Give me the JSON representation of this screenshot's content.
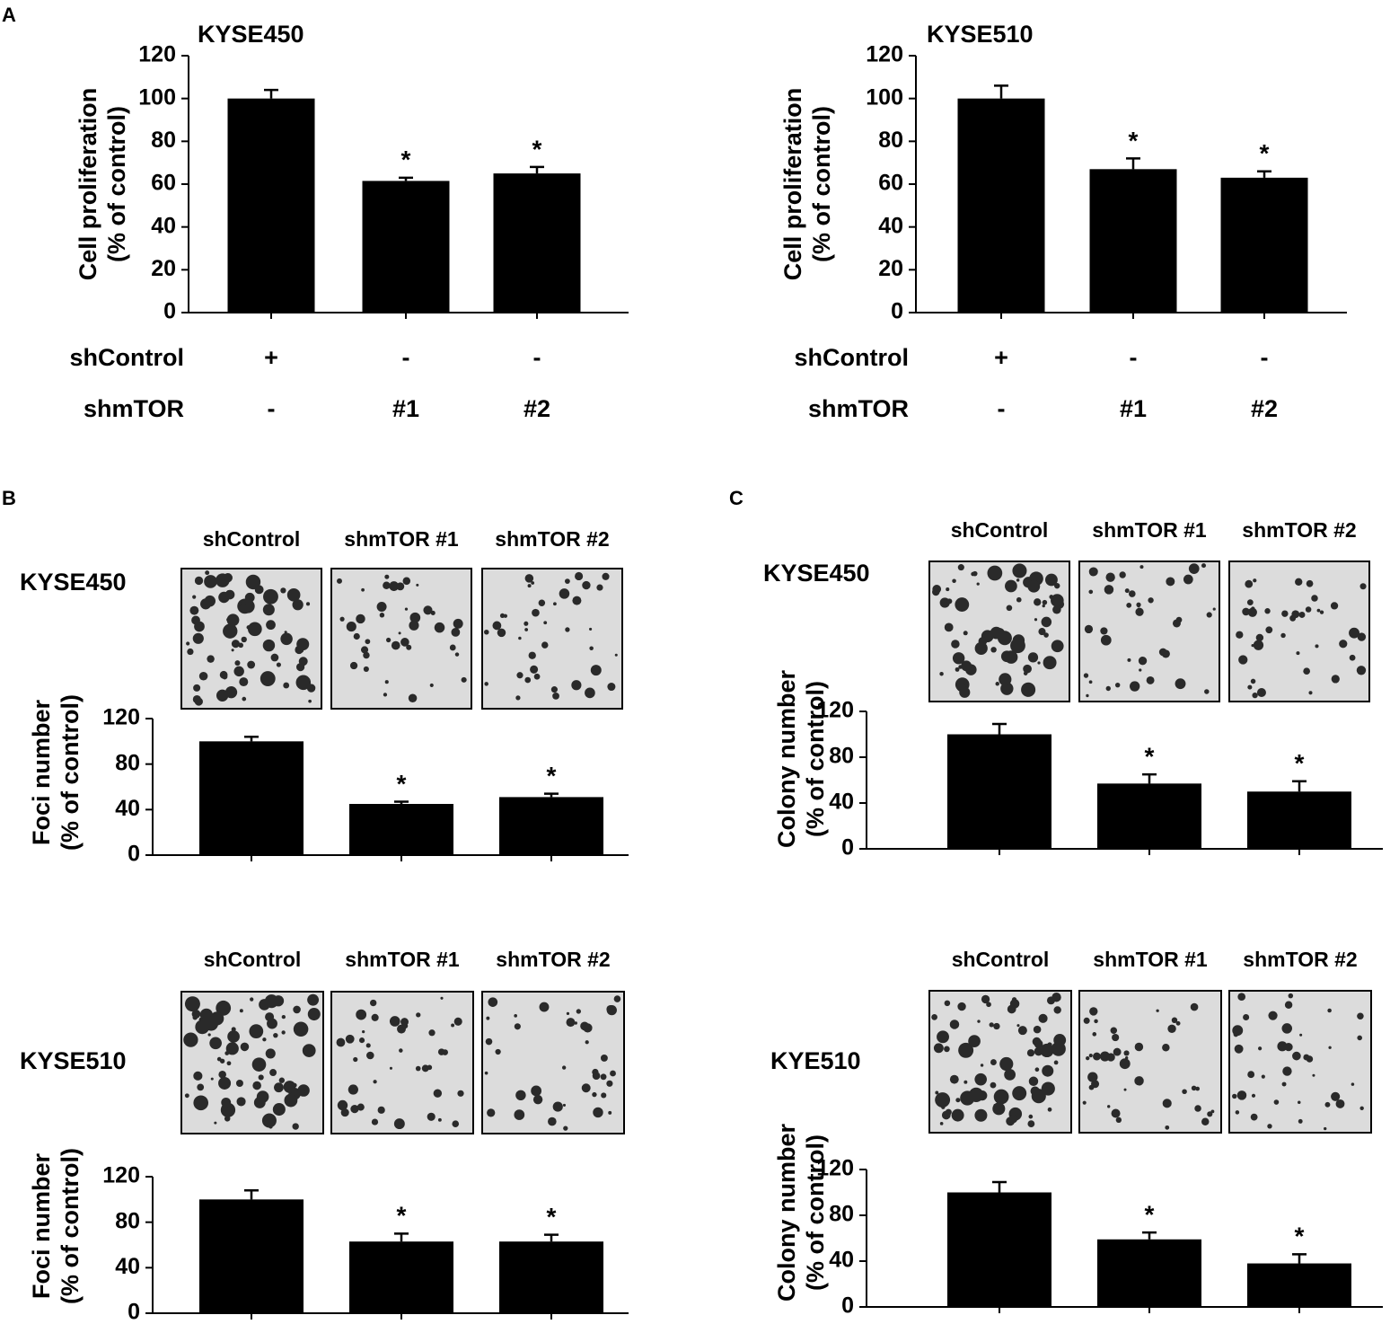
{
  "panel_labels": [
    "A",
    "B",
    "C"
  ],
  "chart_data": [
    {
      "type": "bar",
      "title": "KYSE450",
      "y_label": [
        "Cell proliferation",
        "(% of control)"
      ],
      "categories": [
        null,
        null,
        null
      ],
      "values": [
        100,
        61.5,
        65
      ],
      "errors": [
        4,
        1.5,
        3
      ],
      "annotations": [
        null,
        "*",
        "*"
      ],
      "color": "#000000",
      "ylim": [
        0,
        120
      ],
      "yticks": [
        0,
        20,
        40,
        60,
        80,
        100,
        120
      ],
      "treatment_table": [
        {
          "label": "shControl",
          "cells": [
            "+",
            "-",
            "-"
          ]
        },
        {
          "label": "shmTOR",
          "cells": [
            "-",
            "#1",
            "#2"
          ]
        }
      ]
    },
    {
      "type": "bar",
      "title": "KYSE510",
      "y_label": [
        "Cell proliferation",
        "(% of control)"
      ],
      "categories": [
        null,
        null,
        null
      ],
      "values": [
        100,
        67,
        63
      ],
      "errors": [
        6,
        5,
        3
      ],
      "annotations": [
        null,
        "*",
        "*"
      ],
      "color": "#000000",
      "ylim": [
        0,
        120
      ],
      "yticks": [
        0,
        20,
        40,
        60,
        80,
        100,
        120
      ],
      "treatment_table": [
        {
          "label": "shControl",
          "cells": [
            "+",
            "-",
            "-"
          ]
        },
        {
          "label": "shmTOR",
          "cells": [
            "-",
            "#1",
            "#2"
          ]
        }
      ]
    },
    {
      "type": "bar",
      "title": "KYSE450",
      "y_label": [
        "Foci number",
        "(% of control)"
      ],
      "image_labels": [
        "shControl",
        "shmTOR #1",
        "shmTOR #2"
      ],
      "categories": [
        null,
        null,
        null
      ],
      "values": [
        100,
        45,
        51
      ],
      "errors": [
        4,
        2,
        3
      ],
      "annotations": [
        null,
        "*",
        "*"
      ],
      "color": "#000000",
      "ylim": [
        0,
        120
      ],
      "yticks": [
        0,
        40,
        80,
        120
      ]
    },
    {
      "type": "bar",
      "title": "KYSE510",
      "y_label": [
        "Foci number",
        "(% of control)"
      ],
      "image_labels": [
        "shControl",
        "shmTOR #1",
        "shmTOR #2"
      ],
      "categories": [
        null,
        null,
        null
      ],
      "values": [
        100,
        63,
        63
      ],
      "errors": [
        8,
        7,
        6
      ],
      "annotations": [
        null,
        "*",
        "*"
      ],
      "color": "#000000",
      "ylim": [
        0,
        120
      ],
      "yticks": [
        0,
        40,
        80,
        120
      ]
    },
    {
      "type": "bar",
      "title": "KYSE450",
      "y_label": [
        "Colony number",
        "(% of control)"
      ],
      "image_labels": [
        "shControl",
        "shmTOR #1",
        "shmTOR #2"
      ],
      "categories": [
        null,
        null,
        null
      ],
      "values": [
        100,
        57,
        50
      ],
      "errors": [
        9,
        8,
        9
      ],
      "annotations": [
        null,
        "*",
        "*"
      ],
      "color": "#000000",
      "ylim": [
        0,
        120
      ],
      "yticks": [
        0,
        40,
        80,
        120
      ]
    },
    {
      "type": "bar",
      "title": "KYE510",
      "y_label": [
        "Colony number",
        "(% of control)"
      ],
      "image_labels": [
        "shControl",
        "shmTOR #1",
        "shmTOR #2"
      ],
      "categories": [
        null,
        null,
        null
      ],
      "values": [
        100,
        59,
        38
      ],
      "errors": [
        9,
        6,
        8
      ],
      "annotations": [
        null,
        "*",
        "*"
      ],
      "color": "#000000",
      "ylim": [
        0,
        120
      ],
      "yticks": [
        0,
        40,
        80,
        120
      ]
    }
  ]
}
